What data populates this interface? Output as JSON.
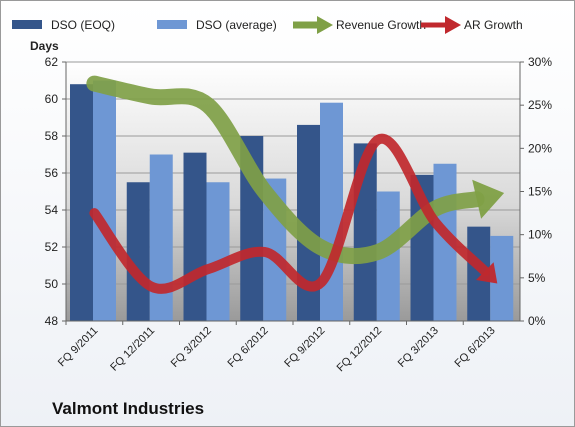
{
  "chart_data": {
    "type": "bar",
    "title": "",
    "company": "Valmont Industries",
    "ylabel_left": "Days",
    "ylim_left": [
      48,
      62
    ],
    "yticks_left": [
      "48",
      "50",
      "52",
      "54",
      "56",
      "58",
      "60",
      "62"
    ],
    "ylim_right": [
      0,
      30
    ],
    "yticks_right": [
      "0%",
      "5%",
      "10%",
      "15%",
      "20%",
      "25%",
      "30%"
    ],
    "categories": [
      "FQ 9/2011",
      "FQ 12/2011",
      "FQ 3/2012",
      "FQ 6/2012",
      "FQ 9/2012",
      "FQ 12/2012",
      "FQ 3/2013",
      "FQ 6/2013"
    ],
    "series": [
      {
        "name": "DSO (EOQ)",
        "kind": "bar",
        "axis": "left",
        "color": "#34558a",
        "values": [
          60.8,
          55.5,
          57.1,
          58.0,
          58.6,
          57.6,
          55.9,
          53.1
        ]
      },
      {
        "name": "DSO (average)",
        "kind": "bar",
        "axis": "left",
        "color": "#6e97d4",
        "values": [
          61.0,
          57.0,
          55.5,
          55.7,
          59.8,
          55.0,
          56.5,
          52.6
        ]
      },
      {
        "name": "Revenue Growth",
        "kind": "arrow-line",
        "axis": "right",
        "color": "#7fa046",
        "values": [
          27.5,
          26,
          25,
          15,
          8.5,
          8,
          13,
          14.5
        ]
      },
      {
        "name": "AR Growth",
        "kind": "arrow-line",
        "axis": "right",
        "color": "#c0282d",
        "values": [
          12.5,
          4,
          6,
          8,
          4.5,
          21,
          11.5,
          5
        ]
      }
    ],
    "legend_position": "top",
    "grid": true
  }
}
